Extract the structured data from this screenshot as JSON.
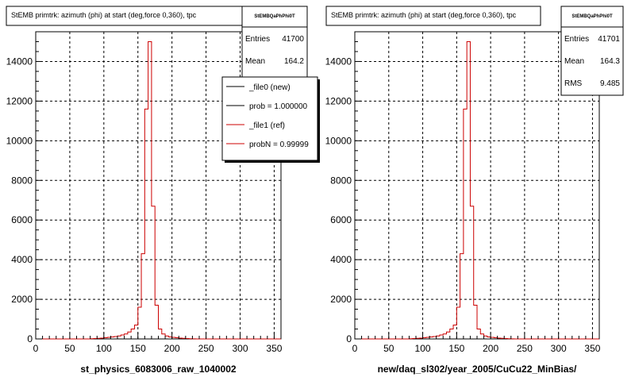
{
  "footer_text": "",
  "chart_data": [
    {
      "type": "histogram",
      "title": "StEMB primtrk: azimuth (phi) at start (deg,force 0,360), tpc",
      "xlabel": "st_physics_6083006_raw_1040002",
      "xlim": [
        0,
        360
      ],
      "ylim": [
        0,
        15500
      ],
      "xticks": [
        0,
        50,
        100,
        150,
        200,
        250,
        300,
        350
      ],
      "yticks": [
        0,
        2000,
        4000,
        6000,
        8000,
        10000,
        12000,
        14000
      ],
      "grid": true,
      "bin_width": 5,
      "bin_starts": [
        80,
        85,
        90,
        95,
        100,
        105,
        110,
        115,
        120,
        125,
        130,
        135,
        140,
        145,
        150,
        155,
        160,
        165,
        170,
        175,
        180,
        185,
        190,
        195,
        200,
        205,
        210,
        215,
        220,
        225,
        230
      ],
      "values": [
        10,
        20,
        30,
        40,
        60,
        80,
        100,
        120,
        150,
        200,
        250,
        350,
        500,
        700,
        1600,
        4300,
        11600,
        15000,
        6700,
        1700,
        500,
        250,
        150,
        100,
        80,
        60,
        40,
        30,
        20,
        10,
        5
      ],
      "line_color": "#cc0000",
      "stats": {
        "name": "StEMBQaPhPhi0T",
        "rows": [
          {
            "label": "Entries",
            "value": "41700"
          },
          {
            "label": "Mean",
            "value": "164.2"
          }
        ]
      },
      "legend": {
        "placement": "top-right",
        "entries": [
          {
            "label": "_file0 (new)",
            "color": "#000000"
          },
          {
            "label": "prob = 1.000000",
            "color": "#000000"
          },
          {
            "label": "_file1 (ref)",
            "color": "#cc0000"
          },
          {
            "label": "probN = 0.99999",
            "color": "#cc0000"
          }
        ]
      }
    },
    {
      "type": "histogram",
      "title": "StEMB primtrk: azimuth (phi) at start (deg,force 0,360), tpc",
      "xlabel": "new/daq_sl302/year_2005/CuCu22_MinBias/",
      "xlim": [
        0,
        360
      ],
      "ylim": [
        0,
        15500
      ],
      "xticks": [
        0,
        50,
        100,
        150,
        200,
        250,
        300,
        350
      ],
      "yticks": [
        0,
        2000,
        4000,
        6000,
        8000,
        10000,
        12000,
        14000
      ],
      "grid": true,
      "bin_width": 5,
      "bin_starts": [
        80,
        85,
        90,
        95,
        100,
        105,
        110,
        115,
        120,
        125,
        130,
        135,
        140,
        145,
        150,
        155,
        160,
        165,
        170,
        175,
        180,
        185,
        190,
        195,
        200,
        205,
        210,
        215,
        220,
        225,
        230
      ],
      "values": [
        10,
        20,
        30,
        40,
        60,
        80,
        100,
        120,
        150,
        200,
        250,
        350,
        500,
        700,
        1600,
        4300,
        11600,
        15000,
        6700,
        1700,
        500,
        250,
        150,
        100,
        80,
        60,
        40,
        30,
        20,
        10,
        5
      ],
      "line_color": "#cc0000",
      "stats": {
        "name": "StEMBQaPhPhi0T",
        "rows": [
          {
            "label": "Entries",
            "value": "41701"
          },
          {
            "label": "Mean",
            "value": "164.3"
          },
          {
            "label": "RMS",
            "value": "9.485"
          }
        ]
      }
    }
  ]
}
